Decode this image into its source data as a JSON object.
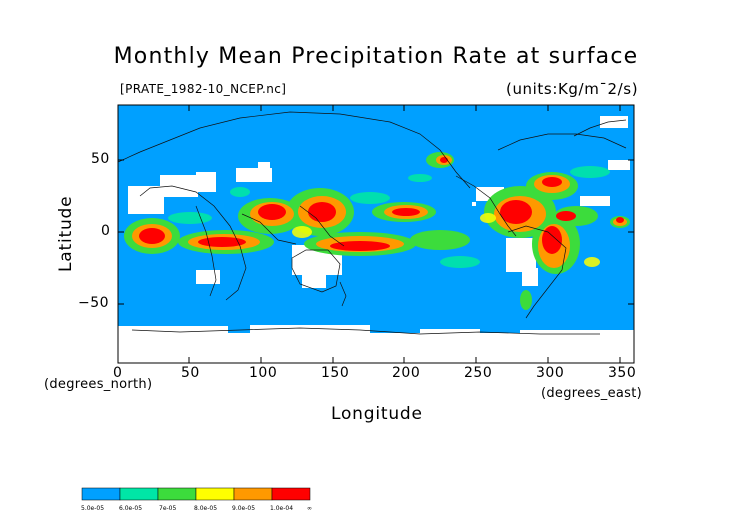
{
  "title": "Monthly Mean Precipitation Rate at surface",
  "subtitle_left": "[PRATE_1982-10_NCEP.nc]",
  "subtitle_right": "(units:Kg/m¯2/s)",
  "ylabel": "Latitude",
  "xlabel": "Longitude",
  "x_unit": "(degrees_east)",
  "y_unit": "(degrees_north)",
  "x_ticks": [
    "0",
    "50",
    "100",
    "150",
    "200",
    "250",
    "300",
    "350"
  ],
  "y_ticks": [
    "50",
    "0",
    "−50"
  ],
  "colors": {
    "ocean_fill": "#00a0ff",
    "bin_1": "#00a0ff",
    "bin_2": "#00e6a6",
    "bin_3": "#3cdc3c",
    "bin_4": "#ffff00",
    "bin_5": "#ff9900",
    "bin_6": "#ff0000",
    "missing": "#ffffff"
  },
  "legend": {
    "labels": [
      "5.0e-05",
      "6.0e-05",
      "7e-05",
      "8.0e-05",
      "9.0e-05",
      "1.0e-04",
      "∞"
    ]
  }
}
